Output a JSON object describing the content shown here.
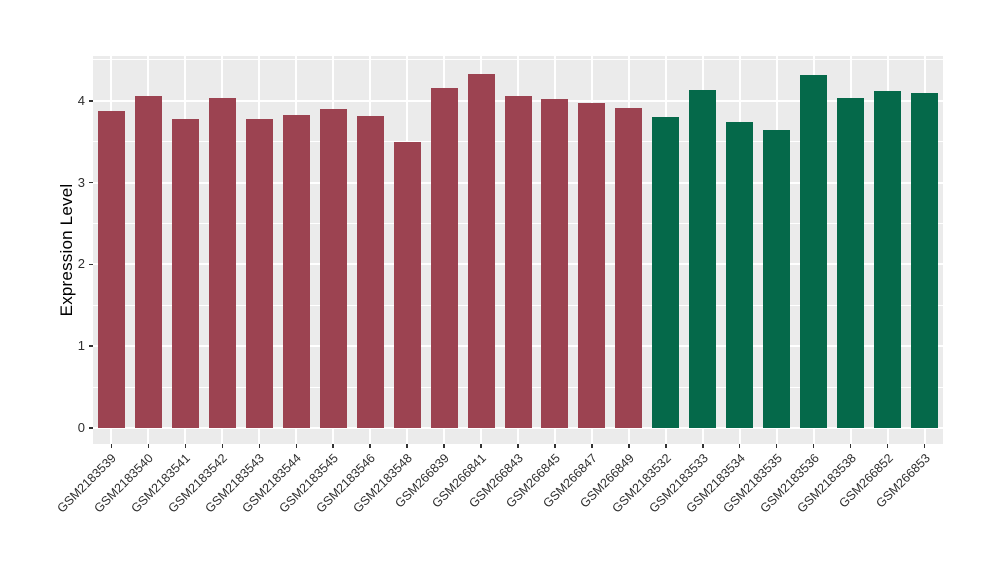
{
  "chart_data": {
    "type": "bar",
    "title": "",
    "xlabel": "",
    "ylabel": "Expression Level",
    "ylim": [
      0,
      4.55
    ],
    "yticks": [
      "0",
      "1",
      "2",
      "3",
      "4"
    ],
    "grid": "white major gridlines at integers, white minor gridlines at halves, vertical gridline at each category center, grey panel background",
    "legend_position": "none",
    "categories": [
      "GSM2183539",
      "GSM2183540",
      "GSM2183541",
      "GSM2183542",
      "GSM2183543",
      "GSM2183544",
      "GSM2183545",
      "GSM2183546",
      "GSM2183548",
      "GSM266839",
      "GSM266841",
      "GSM266843",
      "GSM266845",
      "GSM266847",
      "GSM266849",
      "GSM2183532",
      "GSM2183533",
      "GSM2183534",
      "GSM2183535",
      "GSM2183536",
      "GSM2183538",
      "GSM266852",
      "GSM266853"
    ],
    "values": [
      3.87,
      4.06,
      3.78,
      4.03,
      3.78,
      3.83,
      3.9,
      3.81,
      3.5,
      4.16,
      4.33,
      4.06,
      4.02,
      3.97,
      3.91,
      3.8,
      4.13,
      3.74,
      3.64,
      4.31,
      4.03,
      4.12,
      4.09
    ],
    "bar_groups": [
      "group1",
      "group1",
      "group1",
      "group1",
      "group1",
      "group1",
      "group1",
      "group1",
      "group1",
      "group1",
      "group1",
      "group1",
      "group1",
      "group1",
      "group1",
      "group2",
      "group2",
      "group2",
      "group2",
      "group2",
      "group2",
      "group2",
      "group2"
    ],
    "group_colors": {
      "group1": "#9c4351",
      "group2": "#05694a"
    },
    "colors": {
      "panel_background": "#ebebeb",
      "gridline": "#ffffff",
      "tick_text": "#2e2e2e",
      "axis_title_text": "#000000",
      "tick_mark": "#333333",
      "figure_background": "#ffffff"
    }
  }
}
